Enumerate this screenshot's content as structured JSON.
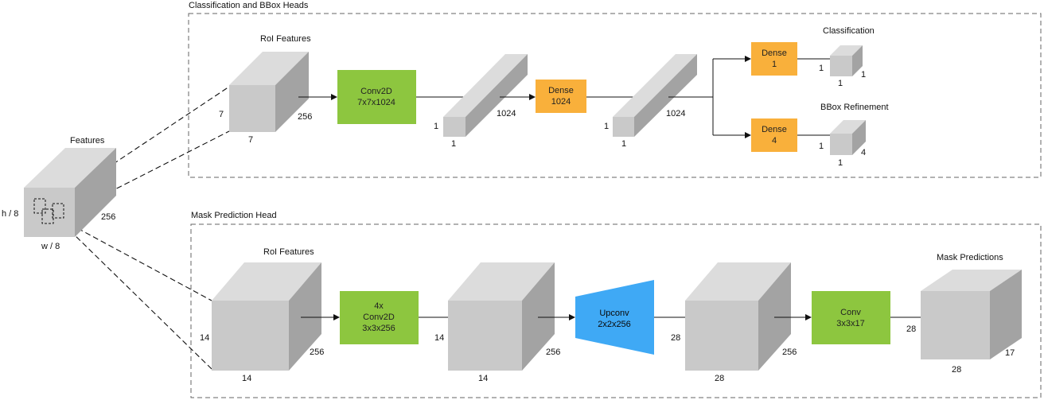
{
  "colors": {
    "conv": "#8dc63f",
    "dense": "#f9b03b",
    "upconv": "#3fa9f5",
    "cube_front": "#c9c9c9",
    "cube_top": "#dcdcdc",
    "cube_side": "#a3a3a3",
    "frame": "#666666"
  },
  "features": {
    "title": "Features",
    "height_label": "h / 8",
    "width_label": "w / 8",
    "depth_label": "256"
  },
  "cls_section": {
    "title": "Classification and BBox Heads",
    "roi_title": "RoI Features",
    "roi_h": "7",
    "roi_w": "7",
    "roi_d": "256",
    "conv_line1": "Conv2D",
    "conv_line2": "7x7x1024",
    "fc1_h": "1",
    "fc1_w": "1",
    "fc1_d": "1024",
    "dense_line1": "Dense",
    "dense_line2": "1024",
    "fc2_h": "1",
    "fc2_w": "1",
    "fc2_d": "1024",
    "classification_title": "Classification",
    "cls_dense_line1": "Dense",
    "cls_dense_line2": "1",
    "cls_out_h": "1",
    "cls_out_w": "1",
    "cls_out_d": "1",
    "bbox_title": "BBox Refinement",
    "bbox_dense_line1": "Dense",
    "bbox_dense_line2": "4",
    "bbox_out_h": "1",
    "bbox_out_w": "1",
    "bbox_out_d": "4"
  },
  "mask_section": {
    "title": "Mask Prediction Head",
    "roi_title": "RoI Features",
    "roi_h": "14",
    "roi_w": "14",
    "roi_d": "256",
    "conv_line1": "4x",
    "conv_line2": "Conv2D",
    "conv_line3": "3x3x256",
    "mid_h": "14",
    "mid_w": "14",
    "mid_d": "256",
    "upconv_line1": "Upconv",
    "upconv_line2": "2x2x256",
    "up_h": "28",
    "up_w": "28",
    "up_d": "256",
    "final_conv_line1": "Conv",
    "final_conv_line2": "3x3x17",
    "pred_title": "Mask Predictions",
    "pred_h": "28",
    "pred_w": "28",
    "pred_d": "17"
  }
}
